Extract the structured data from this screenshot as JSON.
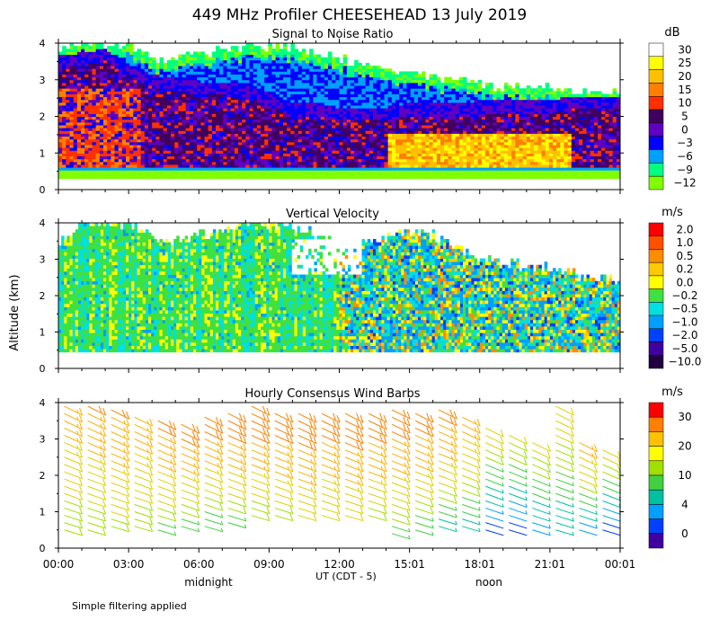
{
  "title": "449 MHz Profiler CHEESEHEAD 13 July 2019",
  "y_axis_label": "Altitude (km)",
  "x_axis_label": "UT  (CDT - 5)",
  "x_ticks": [
    "00:00",
    "03:00",
    "06:00",
    "09:00",
    "12:00",
    "15:01",
    "18:01",
    "21:01",
    "00:01"
  ],
  "midnight_label": "midnight",
  "noon_label": "noon",
  "footnote": "Simple filtering applied",
  "chart_data": [
    {
      "type": "heatmap",
      "title": "Signal to Noise Ratio",
      "unit": "dB",
      "ylabel": "Altitude (km)",
      "ylim": [
        0,
        4
      ],
      "yticks": [
        "0",
        "1",
        "2",
        "3",
        "4"
      ],
      "colorbar_labels": [
        "30",
        "25",
        "20",
        "15",
        "10",
        "5",
        "0",
        "−3",
        "−6",
        "−9",
        "−12"
      ],
      "colorbar_colors": [
        "#ffffff",
        "#ffff00",
        "#ffc000",
        "#ff8000",
        "#ff3000",
        "#400060",
        "#6000c0",
        "#0000ff",
        "#00a0ff",
        "#00ff80",
        "#80ff00"
      ],
      "data_hours": [
        0,
        24
      ],
      "data_alt_min": 0.3,
      "lower_bound_km": [
        0.5,
        0.5,
        0.5,
        0.5,
        0.5,
        0.5,
        0.5,
        0.5,
        0.5,
        0.5,
        0.5,
        0.5,
        0.5,
        0.5,
        0.5,
        0.5,
        0.5,
        0.5,
        0.5,
        0.5,
        0.5,
        0.5,
        0.5,
        0.5,
        0.5
      ],
      "top_km": [
        3.9,
        4.0,
        4.0,
        4.0,
        3.5,
        3.6,
        3.7,
        3.8,
        3.9,
        3.9,
        3.9,
        3.8,
        3.6,
        3.4,
        3.3,
        3.2,
        3.1,
        3.0,
        2.9,
        2.8,
        2.8,
        2.8,
        2.7,
        2.7,
        2.7
      ],
      "strong_layer_top_km": [
        3.3,
        3.4,
        3.5,
        3.1,
        2.8,
        2.7,
        2.6,
        2.6,
        2.5,
        2.3,
        2.0,
        2.0,
        1.9,
        1.9,
        1.9,
        2.0,
        2.0,
        2.0,
        2.1,
        2.1,
        2.1,
        2.1,
        2.2,
        2.2,
        2.2
      ]
    },
    {
      "type": "heatmap",
      "title": "Vertical Velocity",
      "unit": "m/s",
      "ylabel": "Altitude (km)",
      "ylim": [
        0,
        4
      ],
      "yticks": [
        "0",
        "1",
        "2",
        "3",
        "4"
      ],
      "colorbar_labels": [
        "2.0",
        "1.0",
        "0.5",
        "0.2",
        "0.0",
        "−0.2",
        "−0.5",
        "−1.0",
        "−2.0",
        "−5.0",
        "−10.0"
      ],
      "colorbar_colors": [
        "#ff0000",
        "#ff5000",
        "#ff8c00",
        "#ffc800",
        "#ffff00",
        "#40e040",
        "#00e0e0",
        "#00a0ff",
        "#0040ff",
        "#4000a0",
        "#200040"
      ],
      "data_hours": [
        0,
        24
      ],
      "top_km": [
        3.4,
        4.0,
        4.0,
        4.0,
        3.6,
        3.5,
        3.7,
        3.8,
        4.0,
        4.0,
        3.9,
        3.7,
        3.5,
        3.4,
        3.6,
        3.8,
        3.7,
        3.3,
        3.0,
        2.9,
        2.8,
        2.8,
        2.6,
        2.5,
        2.4
      ]
    },
    {
      "type": "wind_barbs",
      "title": "Hourly Consensus Wind Barbs",
      "unit": "m/s",
      "ylabel": "Altitude (km)",
      "ylim": [
        0,
        4
      ],
      "yticks": [
        "0",
        "1",
        "2",
        "3",
        "4"
      ],
      "colorbar_labels": [
        "30",
        "20",
        "10",
        "4",
        "0"
      ],
      "colorbar_values": [
        30,
        20,
        10,
        4,
        0
      ],
      "colorbar_colors": [
        "#ff0000",
        "#ff8000",
        "#ffc000",
        "#ffff00",
        "#a0e000",
        "#40d040",
        "#00c0a0",
        "#00a0ff",
        "#0040ff",
        "#4000a0"
      ],
      "hours": [
        0,
        1,
        2,
        3,
        4,
        5,
        6,
        7,
        8,
        9,
        10,
        11,
        12,
        13,
        14,
        15,
        16,
        17,
        18,
        19,
        20,
        21,
        22,
        23
      ],
      "top_km": [
        3.9,
        3.9,
        3.8,
        3.7,
        3.5,
        3.4,
        3.6,
        3.8,
        3.9,
        3.8,
        3.7,
        3.8,
        3.8,
        3.8,
        3.8,
        3.8,
        3.9,
        3.6,
        3.4,
        3.2,
        3.0,
        3.9,
        2.9,
        2.8
      ],
      "bottom_km": [
        0.5,
        0.5,
        0.6,
        0.6,
        0.5,
        0.6,
        0.6,
        0.7,
        0.9,
        0.9,
        0.9,
        0.9,
        0.9,
        0.9,
        0.4,
        0.5,
        0.6,
        0.6,
        0.5,
        0.5,
        0.5,
        0.5,
        0.5,
        0.5
      ],
      "speed_low_ms": [
        10,
        10,
        11,
        10,
        9,
        9,
        8,
        9,
        10,
        11,
        12,
        12,
        12,
        11,
        9,
        8,
        7,
        7,
        3,
        3,
        5,
        6,
        4,
        3
      ],
      "speed_high_ms": [
        18,
        20,
        20,
        19,
        21,
        22,
        22,
        24,
        24,
        24,
        24,
        23,
        24,
        24,
        23,
        23,
        22,
        18,
        14,
        13,
        13,
        14,
        18,
        14
      ]
    }
  ]
}
